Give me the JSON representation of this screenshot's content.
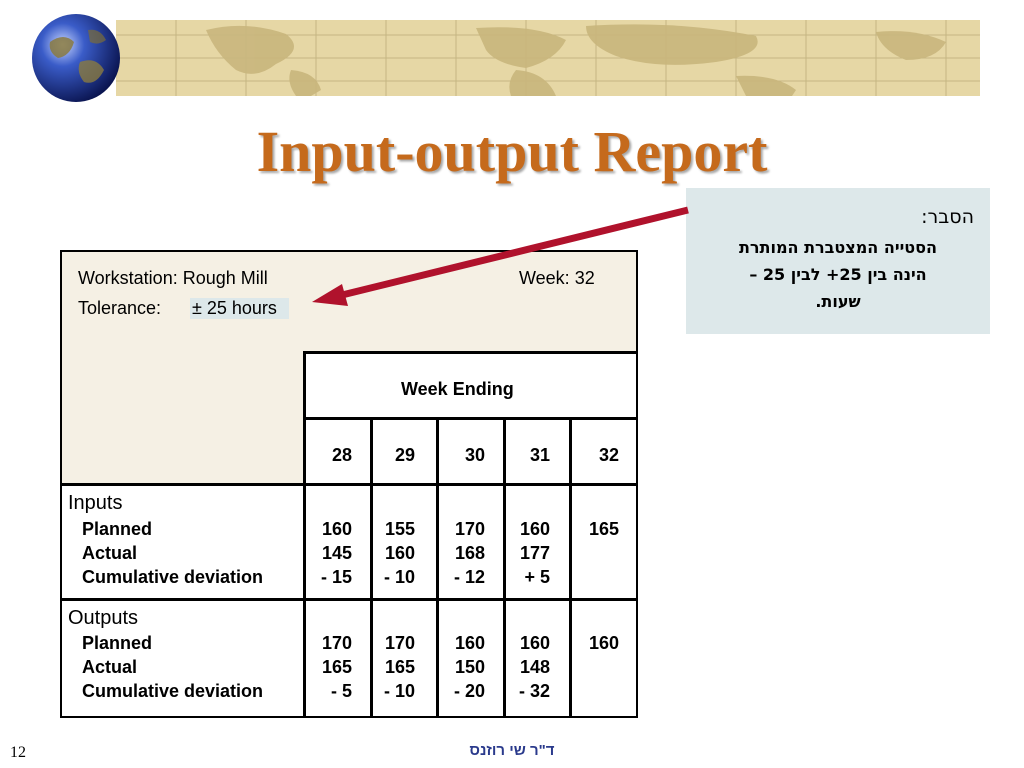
{
  "slide": {
    "title": "Input-output Report",
    "page_number": "12",
    "author": "ד\"ר שי רוזנס"
  },
  "callout": {
    "heading": "הסבר:",
    "lines": [
      "הסטייה המצטברת המותרת",
      "הינה בין 25+ לבין 25 –",
      "שעות."
    ]
  },
  "report": {
    "workstation": "Workstation: Rough Mill",
    "week": "Week: 32",
    "tolerance_label": "Tolerance:",
    "tolerance_value": "± 25 hours",
    "week_ending": "Week Ending",
    "weeks": [
      "28",
      "29",
      "30",
      "31",
      "32"
    ],
    "inputs": {
      "title": "Inputs",
      "planned_label": "Planned",
      "actual_label": "Actual",
      "deviation_label": "Cumulative deviation",
      "planned": [
        "160",
        "155",
        "170",
        "160",
        "165"
      ],
      "actual": [
        "145",
        "160",
        "168",
        "177",
        ""
      ],
      "deviation": [
        "- 15",
        "- 10",
        "- 12",
        "+ 5",
        ""
      ]
    },
    "outputs": {
      "title": "Outputs",
      "planned_label": "Planned",
      "actual_label": "Actual",
      "deviation_label": "Cumulative deviation",
      "planned": [
        "170",
        "170",
        "160",
        "160",
        "160"
      ],
      "actual": [
        "165",
        "165",
        "150",
        "148",
        ""
      ],
      "deviation": [
        "- 5",
        "- 10",
        "- 20",
        "- 32",
        ""
      ]
    }
  },
  "colors": {
    "title": "#c56a1c",
    "arrow": "#b0122c",
    "callout_bg": "#dde8ea",
    "banner_bg": "#e6d7a5"
  }
}
